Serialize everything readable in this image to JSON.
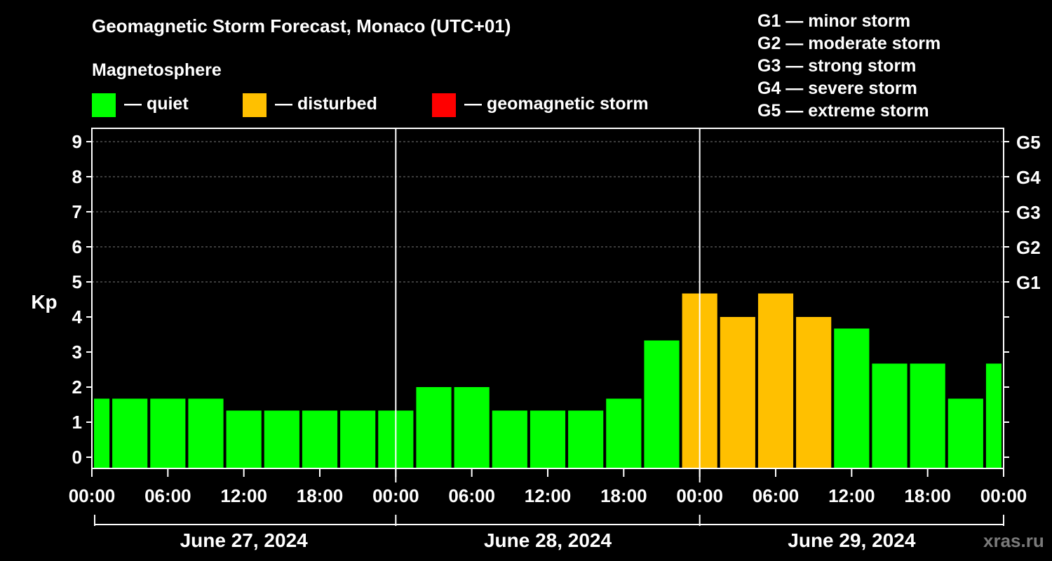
{
  "chart_data": {
    "type": "bar",
    "title": "Geomagnetic Storm Forecast, Monaco (UTC+01)",
    "subtitle": "Magnetosphere",
    "ylabel": "Kp",
    "ylim": [
      0,
      9
    ],
    "yticks": [
      0,
      1,
      2,
      3,
      4,
      5,
      6,
      7,
      8,
      9
    ],
    "right_axis": [
      {
        "kp": 5,
        "label": "G1"
      },
      {
        "kp": 6,
        "label": "G2"
      },
      {
        "kp": 7,
        "label": "G3"
      },
      {
        "kp": 8,
        "label": "G4"
      },
      {
        "kp": 9,
        "label": "G5"
      }
    ],
    "xticks": [
      "00:00",
      "06:00",
      "12:00",
      "18:00",
      "00:00",
      "06:00",
      "12:00",
      "18:00",
      "00:00",
      "06:00",
      "12:00",
      "18:00",
      "00:00"
    ],
    "days": [
      "June 27, 2024",
      "June 28, 2024",
      "June 29, 2024"
    ],
    "grid": true,
    "bars": [
      {
        "x": 0.0,
        "value": 1.67,
        "status": "quiet"
      },
      {
        "x": 3.0,
        "value": 1.67,
        "status": "quiet"
      },
      {
        "x": 6.0,
        "value": 1.67,
        "status": "quiet"
      },
      {
        "x": 9.0,
        "value": 1.67,
        "status": "quiet"
      },
      {
        "x": 12.0,
        "value": 1.33,
        "status": "quiet"
      },
      {
        "x": 15.0,
        "value": 1.33,
        "status": "quiet"
      },
      {
        "x": 18.0,
        "value": 1.33,
        "status": "quiet"
      },
      {
        "x": 21.0,
        "value": 1.33,
        "status": "quiet"
      },
      {
        "x": 24.0,
        "value": 1.33,
        "status": "quiet"
      },
      {
        "x": 27.0,
        "value": 2.0,
        "status": "quiet"
      },
      {
        "x": 30.0,
        "value": 2.0,
        "status": "quiet"
      },
      {
        "x": 33.0,
        "value": 1.33,
        "status": "quiet"
      },
      {
        "x": 36.0,
        "value": 1.33,
        "status": "quiet"
      },
      {
        "x": 39.0,
        "value": 1.33,
        "status": "quiet"
      },
      {
        "x": 42.0,
        "value": 1.67,
        "status": "quiet"
      },
      {
        "x": 45.0,
        "value": 3.33,
        "status": "quiet"
      },
      {
        "x": 48.0,
        "value": 4.67,
        "status": "disturbed"
      },
      {
        "x": 51.0,
        "value": 4.0,
        "status": "disturbed"
      },
      {
        "x": 54.0,
        "value": 4.67,
        "status": "disturbed"
      },
      {
        "x": 57.0,
        "value": 4.0,
        "status": "disturbed"
      },
      {
        "x": 60.0,
        "value": 3.67,
        "status": "quiet"
      },
      {
        "x": 63.0,
        "value": 2.67,
        "status": "quiet"
      },
      {
        "x": 66.0,
        "value": 2.67,
        "status": "quiet"
      },
      {
        "x": 69.0,
        "value": 1.67,
        "status": "quiet"
      },
      {
        "x": 72.0,
        "value": 2.67,
        "status": "quiet"
      }
    ]
  },
  "legend": [
    {
      "label": "— quiet",
      "color": "#00ff00"
    },
    {
      "label": "— disturbed",
      "color": "#ffc000"
    },
    {
      "label": "— geomagnetic storm",
      "color": "#ff0000"
    }
  ],
  "storm_levels": [
    "G1 — minor storm",
    "G2 — moderate storm",
    "G3 — strong storm",
    "G4 — severe storm",
    "G5 — extreme storm"
  ],
  "watermark": "xras.ru"
}
